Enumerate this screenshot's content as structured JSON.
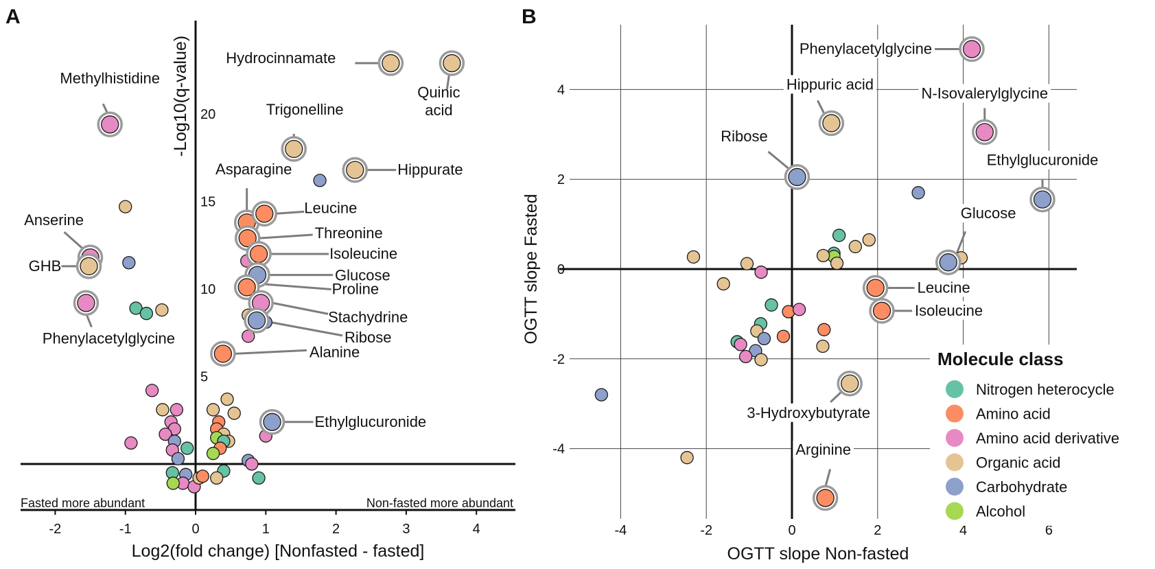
{
  "colors": {
    "Nitrogen heterocycle": "#66c2a5",
    "Amino acid": "#fc8d62",
    "Amino acid derivative": "#e78ac3",
    "Organic acid": "#e5c494",
    "Carbohydrate": "#8da0cb",
    "Alcohol": "#a6d854",
    "highlight_ring": "#9a9a9a",
    "axis": "#111111",
    "grid": "#444444"
  },
  "chart_data": [
    {
      "type": "scatter",
      "panel": "A",
      "xlabel": "Log2(fold change) [Nonfasted - fasted]",
      "ylabel": "-Log10(q-value)",
      "xticks": [
        -2,
        -1,
        0,
        1,
        2,
        3,
        4
      ],
      "yticks": [
        5,
        10,
        15,
        20
      ],
      "xlim": [
        -2.3,
        4.2
      ],
      "ylim": [
        -2.3,
        24.2
      ],
      "grid": false,
      "left_note": "Fasted more abundant",
      "right_note": "Non-fasted more abundant",
      "labeled": [
        {
          "label": "Hydrocinnamate",
          "x": 2.78,
          "y": 22.9,
          "class": "Organic acid"
        },
        {
          "label": "Quinic acid",
          "x": 3.65,
          "y": 22.9,
          "class": "Organic acid"
        },
        {
          "label": "Methylhistidine",
          "x": -1.22,
          "y": 19.4,
          "class": "Amino acid derivative"
        },
        {
          "label": "Trigonelline",
          "x": 1.4,
          "y": 18.0,
          "class": "Organic acid"
        },
        {
          "label": "Hippurate",
          "x": 2.27,
          "y": 16.8,
          "class": "Organic acid"
        },
        {
          "label": "Asparagine",
          "x": 0.73,
          "y": 13.8,
          "class": "Amino acid"
        },
        {
          "label": "Leucine",
          "x": 0.98,
          "y": 14.3,
          "class": "Amino acid"
        },
        {
          "label": "Threonine",
          "x": 0.74,
          "y": 12.9,
          "class": "Amino acid"
        },
        {
          "label": "Isoleucine",
          "x": 0.9,
          "y": 12.0,
          "class": "Amino acid"
        },
        {
          "label": "Glucose",
          "x": 0.88,
          "y": 10.8,
          "class": "Carbohydrate"
        },
        {
          "label": "Proline",
          "x": 0.73,
          "y": 10.1,
          "class": "Amino acid"
        },
        {
          "label": "Stachydrine",
          "x": 0.93,
          "y": 9.2,
          "class": "Amino acid derivative"
        },
        {
          "label": "Ribose",
          "x": 0.87,
          "y": 8.2,
          "class": "Carbohydrate"
        },
        {
          "label": "Alanine",
          "x": 0.39,
          "y": 6.3,
          "class": "Amino acid"
        },
        {
          "label": "Ethylglucuronide",
          "x": 1.09,
          "y": 2.4,
          "class": "Carbohydrate"
        },
        {
          "label": "Anserine",
          "x": -1.5,
          "y": 11.8,
          "class": "Amino acid derivative"
        },
        {
          "label": "GHB",
          "x": -1.52,
          "y": 11.3,
          "class": "Organic acid"
        },
        {
          "label": "Phenylacetylglycine",
          "x": -1.56,
          "y": 9.2,
          "class": "Amino acid derivative"
        }
      ],
      "points": [
        {
          "x": 1.77,
          "y": 16.2,
          "class": "Carbohydrate"
        },
        {
          "x": -1.0,
          "y": 14.7,
          "class": "Organic acid"
        },
        {
          "x": -0.95,
          "y": 11.5,
          "class": "Carbohydrate"
        },
        {
          "x": -0.85,
          "y": 8.9,
          "class": "Nitrogen heterocycle"
        },
        {
          "x": -0.7,
          "y": 8.6,
          "class": "Nitrogen heterocycle"
        },
        {
          "x": -0.48,
          "y": 8.8,
          "class": "Organic acid"
        },
        {
          "x": 0.75,
          "y": 8.5,
          "class": "Organic acid"
        },
        {
          "x": 1.0,
          "y": 8.1,
          "class": "Carbohydrate"
        },
        {
          "x": 0.75,
          "y": 7.3,
          "class": "Amino acid derivative"
        },
        {
          "x": 0.73,
          "y": 11.6,
          "class": "Amino acid derivative"
        },
        {
          "x": -0.62,
          "y": 4.2,
          "class": "Amino acid derivative"
        },
        {
          "x": -0.47,
          "y": 3.1,
          "class": "Organic acid"
        },
        {
          "x": -0.27,
          "y": 3.1,
          "class": "Amino acid derivative"
        },
        {
          "x": -0.35,
          "y": 2.4,
          "class": "Amino acid derivative"
        },
        {
          "x": -0.3,
          "y": 2.0,
          "class": "Amino acid derivative"
        },
        {
          "x": -0.43,
          "y": 1.7,
          "class": "Amino acid derivative"
        },
        {
          "x": -0.3,
          "y": 1.3,
          "class": "Carbohydrate"
        },
        {
          "x": -0.33,
          "y": 0.8,
          "class": "Amino acid derivative"
        },
        {
          "x": -0.12,
          "y": 0.9,
          "class": "Nitrogen heterocycle"
        },
        {
          "x": -0.25,
          "y": 0.3,
          "class": "Carbohydrate"
        },
        {
          "x": -0.92,
          "y": 1.2,
          "class": "Amino acid derivative"
        },
        {
          "x": 0.45,
          "y": 3.7,
          "class": "Organic acid"
        },
        {
          "x": 0.25,
          "y": 3.1,
          "class": "Organic acid"
        },
        {
          "x": 0.55,
          "y": 2.9,
          "class": "Organic acid"
        },
        {
          "x": 0.33,
          "y": 2.4,
          "class": "Amino acid"
        },
        {
          "x": 0.3,
          "y": 2.0,
          "class": "Amino acid"
        },
        {
          "x": 0.4,
          "y": 1.7,
          "class": "Organic acid"
        },
        {
          "x": 0.3,
          "y": 1.5,
          "class": "Alcohol"
        },
        {
          "x": 0.47,
          "y": 1.3,
          "class": "Organic acid"
        },
        {
          "x": 0.4,
          "y": 1.3,
          "class": "Nitrogen heterocycle"
        },
        {
          "x": 0.35,
          "y": 0.9,
          "class": "Amino acid"
        },
        {
          "x": 0.25,
          "y": 0.6,
          "class": "Alcohol"
        },
        {
          "x": 0.75,
          "y": 0.2,
          "class": "Carbohydrate"
        },
        {
          "x": 0.8,
          "y": 0.0,
          "class": "Amino acid derivative"
        },
        {
          "x": 1.0,
          "y": 1.6,
          "class": "Amino acid derivative"
        },
        {
          "x": 0.4,
          "y": -0.4,
          "class": "Nitrogen heterocycle"
        },
        {
          "x": 0.3,
          "y": -0.8,
          "class": "Organic acid"
        },
        {
          "x": -0.33,
          "y": -0.5,
          "class": "Nitrogen heterocycle"
        },
        {
          "x": -0.14,
          "y": -0.6,
          "class": "Carbohydrate"
        },
        {
          "x": -0.18,
          "y": -1.1,
          "class": "Amino acid derivative"
        },
        {
          "x": -0.32,
          "y": -1.1,
          "class": "Alcohol"
        },
        {
          "x": -0.02,
          "y": -1.3,
          "class": "Amino acid derivative"
        },
        {
          "x": 0.05,
          "y": -0.8,
          "class": "Organic acid"
        },
        {
          "x": 0.1,
          "y": -0.7,
          "class": "Amino acid"
        },
        {
          "x": 0.9,
          "y": -0.8,
          "class": "Nitrogen heterocycle"
        }
      ]
    },
    {
      "type": "scatter",
      "panel": "B",
      "xlabel": "OGTT slope Non-fasted",
      "ylabel": "OGTT slope Fasted",
      "xticks": [
        -4,
        -2,
        0,
        2,
        4,
        6
      ],
      "yticks": [
        -4,
        -2,
        0,
        2,
        4
      ],
      "xlim": [
        -4.6,
        6.4
      ],
      "ylim": [
        -5.5,
        5.5
      ],
      "grid": true,
      "legend": {
        "title": "Molecule class",
        "position": "bottom-right",
        "entries": [
          "Nitrogen heterocycle",
          "Amino acid",
          "Amino acid derivative",
          "Organic acid",
          "Carbohydrate",
          "Alcohol"
        ]
      },
      "labeled": [
        {
          "label": "Phenylacetylglycine",
          "x": 4.2,
          "y": 4.9,
          "class": "Amino acid derivative"
        },
        {
          "label": "Hippuric acid",
          "x": 0.92,
          "y": 3.25,
          "class": "Organic acid"
        },
        {
          "label": "N-Isovalerylglycine",
          "x": 4.5,
          "y": 3.05,
          "class": "Amino acid derivative"
        },
        {
          "label": "Ribose",
          "x": 0.12,
          "y": 2.05,
          "class": "Carbohydrate"
        },
        {
          "label": "Ethylglucuronide",
          "x": 5.85,
          "y": 1.55,
          "class": "Carbohydrate"
        },
        {
          "label": "Glucose",
          "x": 3.65,
          "y": 0.15,
          "class": "Carbohydrate"
        },
        {
          "label": "Leucine",
          "x": 1.95,
          "y": -0.42,
          "class": "Amino acid"
        },
        {
          "label": "Isoleucine",
          "x": 2.1,
          "y": -0.93,
          "class": "Amino acid"
        },
        {
          "label": "3-Hydroxybutyrate",
          "x": 1.35,
          "y": -2.55,
          "class": "Organic acid"
        },
        {
          "label": "Arginine",
          "x": 0.78,
          "y": -5.1,
          "class": "Amino acid"
        }
      ],
      "points": [
        {
          "x": 2.95,
          "y": 1.7,
          "class": "Carbohydrate"
        },
        {
          "x": -4.45,
          "y": -2.8,
          "class": "Carbohydrate"
        },
        {
          "x": -2.45,
          "y": -4.2,
          "class": "Organic acid"
        },
        {
          "x": -2.3,
          "y": 0.27,
          "class": "Organic acid"
        },
        {
          "x": -1.05,
          "y": 0.12,
          "class": "Organic acid"
        },
        {
          "x": -1.6,
          "y": -0.33,
          "class": "Organic acid"
        },
        {
          "x": -0.72,
          "y": -0.07,
          "class": "Amino acid derivative"
        },
        {
          "x": 1.1,
          "y": 0.75,
          "class": "Nitrogen heterocycle"
        },
        {
          "x": 1.8,
          "y": 0.65,
          "class": "Organic acid"
        },
        {
          "x": 1.48,
          "y": 0.5,
          "class": "Organic acid"
        },
        {
          "x": 0.98,
          "y": 0.35,
          "class": "Nitrogen heterocycle"
        },
        {
          "x": 0.98,
          "y": 0.28,
          "class": "Alcohol"
        },
        {
          "x": 0.73,
          "y": 0.3,
          "class": "Organic acid"
        },
        {
          "x": 1.05,
          "y": 0.13,
          "class": "Organic acid"
        },
        {
          "x": 3.95,
          "y": 0.25,
          "class": "Organic acid"
        },
        {
          "x": -0.48,
          "y": -0.8,
          "class": "Nitrogen heterocycle"
        },
        {
          "x": -0.08,
          "y": -0.95,
          "class": "Amino acid"
        },
        {
          "x": 0.17,
          "y": -0.9,
          "class": "Amino acid derivative"
        },
        {
          "x": -0.73,
          "y": -1.22,
          "class": "Nitrogen heterocycle"
        },
        {
          "x": -0.82,
          "y": -1.38,
          "class": "Organic acid"
        },
        {
          "x": 0.75,
          "y": -1.35,
          "class": "Amino acid"
        },
        {
          "x": -0.2,
          "y": -1.5,
          "class": "Amino acid"
        },
        {
          "x": -0.65,
          "y": -1.55,
          "class": "Carbohydrate"
        },
        {
          "x": -1.28,
          "y": -1.62,
          "class": "Nitrogen heterocycle"
        },
        {
          "x": -1.2,
          "y": -1.68,
          "class": "Amino acid derivative"
        },
        {
          "x": 0.72,
          "y": -1.72,
          "class": "Organic acid"
        },
        {
          "x": -0.85,
          "y": -1.82,
          "class": "Carbohydrate"
        },
        {
          "x": -1.08,
          "y": -1.95,
          "class": "Amino acid derivative"
        },
        {
          "x": -0.72,
          "y": -2.02,
          "class": "Organic acid"
        }
      ]
    }
  ],
  "texts": {
    "panel_a_letter": "A",
    "panel_b_letter": "B"
  }
}
